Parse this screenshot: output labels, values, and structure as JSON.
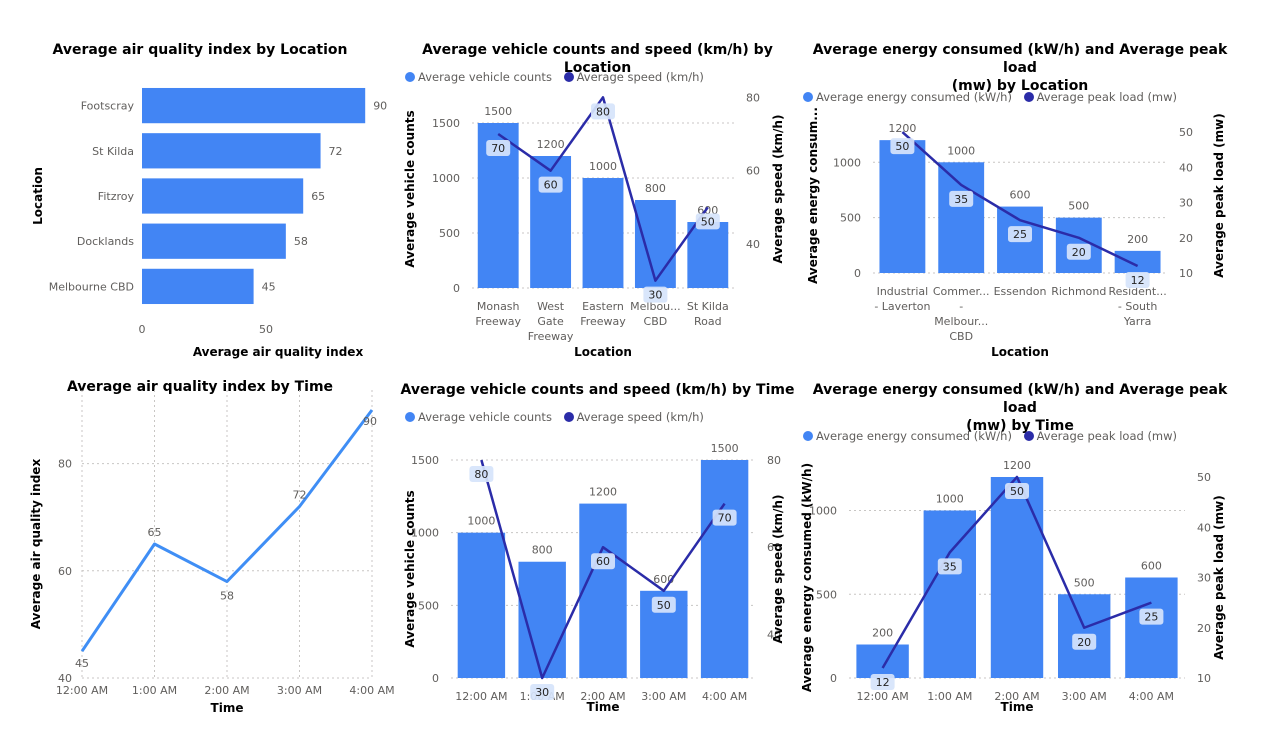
{
  "colors": {
    "bar": "#4285f4",
    "line_dark": "#2b2ca8",
    "line_light": "#3f8ef5",
    "grid": "#c8c6c4",
    "text": "#605e5c",
    "label_bg": "#d6e4fb"
  },
  "chart_data": [
    {
      "type": "bar",
      "orientation": "horizontal",
      "title": "Average air quality index by Location",
      "xlabel": "Average air quality index",
      "ylabel": "Location",
      "categories": [
        "Footscray",
        "St Kilda",
        "Fitzroy",
        "Docklands",
        "Melbourne CBD"
      ],
      "values": [
        90,
        72,
        65,
        58,
        45
      ],
      "xticks": [
        0,
        50
      ],
      "xlim": [
        0,
        100
      ]
    },
    {
      "type": "bar",
      "combo": "bar+line",
      "title": "Average vehicle counts and speed (km/h) by Location",
      "xlabel": "Location",
      "ylabel": "Average vehicle counts",
      "y2label": "Average speed (km/h)",
      "categories": [
        [
          "Monash",
          "Freeway"
        ],
        [
          "West",
          "Gate",
          "Freeway"
        ],
        [
          "Eastern",
          "Freeway"
        ],
        [
          "Melbou...",
          "CBD"
        ],
        [
          "St Kilda",
          "Road"
        ]
      ],
      "series": [
        {
          "name": "Average vehicle counts",
          "values": [
            1500,
            1200,
            1000,
            800,
            600
          ]
        },
        {
          "name": "Average speed (km/h)",
          "values": [
            70,
            60,
            80,
            30,
            50
          ]
        }
      ],
      "yticks": [
        0,
        500,
        1000,
        1500
      ],
      "ylim": [
        0,
        1800
      ],
      "y2ticks": [
        40,
        60,
        80
      ],
      "y2lim": [
        28,
        82
      ],
      "legend": "top-left"
    },
    {
      "type": "bar",
      "combo": "bar+line",
      "title": [
        "Average energy consumed (kW/h) and Average peak load",
        "(mw) by Location"
      ],
      "xlabel": "Location",
      "ylabel": "Average energy consum...",
      "y2label": "Average peak load (mw)",
      "categories": [
        [
          "Industrial",
          "- Laverton"
        ],
        [
          "Commer...",
          "-",
          "Melbour...",
          "CBD"
        ],
        [
          "Essendon"
        ],
        [
          "Richmond"
        ],
        [
          "Resident...",
          "- South",
          "Yarra"
        ]
      ],
      "series": [
        {
          "name": "Average energy consumed (kW/h)",
          "values": [
            1200,
            1000,
            600,
            500,
            200
          ]
        },
        {
          "name": "Average peak load (mw)",
          "values": [
            50,
            35,
            25,
            20,
            12
          ]
        }
      ],
      "yticks": [
        0,
        500,
        1000
      ],
      "ylim": [
        0,
        1400
      ],
      "y2ticks": [
        10,
        20,
        30,
        40,
        50
      ],
      "y2lim": [
        10,
        54
      ],
      "legend": "top-left"
    },
    {
      "type": "line",
      "title": "Average air quality index by Time",
      "xlabel": "Time",
      "ylabel": "Average air quality index",
      "categories": [
        "12:00 AM",
        "1:00 AM",
        "2:00 AM",
        "3:00 AM",
        "4:00 AM"
      ],
      "values": [
        45,
        65,
        58,
        72,
        90
      ],
      "yticks": [
        40,
        60,
        80
      ],
      "ylim": [
        40,
        90
      ]
    },
    {
      "type": "bar",
      "combo": "bar+line",
      "title": "Average vehicle counts and speed (km/h) by Time",
      "xlabel": "Time",
      "ylabel": "Average vehicle counts",
      "y2label": "Average speed (km/h)",
      "categories": [
        [
          "12:00 AM"
        ],
        [
          "1:00 AM"
        ],
        [
          "2:00 AM"
        ],
        [
          "3:00 AM"
        ],
        [
          "4:00 AM"
        ]
      ],
      "series": [
        {
          "name": "Average vehicle counts",
          "values": [
            1000,
            800,
            1200,
            600,
            1500
          ]
        },
        {
          "name": "Average speed (km/h)",
          "values": [
            80,
            30,
            60,
            50,
            70
          ]
        }
      ],
      "yticks": [
        0,
        500,
        1000,
        1500
      ],
      "ylim": [
        0,
        1500
      ],
      "y2ticks": [
        40,
        60,
        80
      ],
      "y2lim": [
        30,
        80
      ],
      "legend": "top-left"
    },
    {
      "type": "bar",
      "combo": "bar+line",
      "title": [
        "Average energy consumed (kW/h) and Average peak load",
        "(mw) by Time"
      ],
      "xlabel": "Time",
      "ylabel": "Average energy consumed (kW/h)",
      "y2label": "Average peak load (mw)",
      "categories": [
        [
          "12:00 AM"
        ],
        [
          "1:00 AM"
        ],
        [
          "2:00 AM"
        ],
        [
          "3:00 AM"
        ],
        [
          "4:00 AM"
        ]
      ],
      "series": [
        {
          "name": "Average energy consumed (kW/h)",
          "values": [
            200,
            1000,
            1200,
            500,
            600
          ]
        },
        {
          "name": "Average peak load (mw)",
          "values": [
            12,
            35,
            50,
            20,
            25
          ]
        }
      ],
      "yticks": [
        0,
        500,
        1000
      ],
      "ylim": [
        0,
        1200
      ],
      "y2ticks": [
        10,
        20,
        30,
        40,
        50
      ],
      "y2lim": [
        10,
        50
      ],
      "legend": "top-left"
    }
  ]
}
